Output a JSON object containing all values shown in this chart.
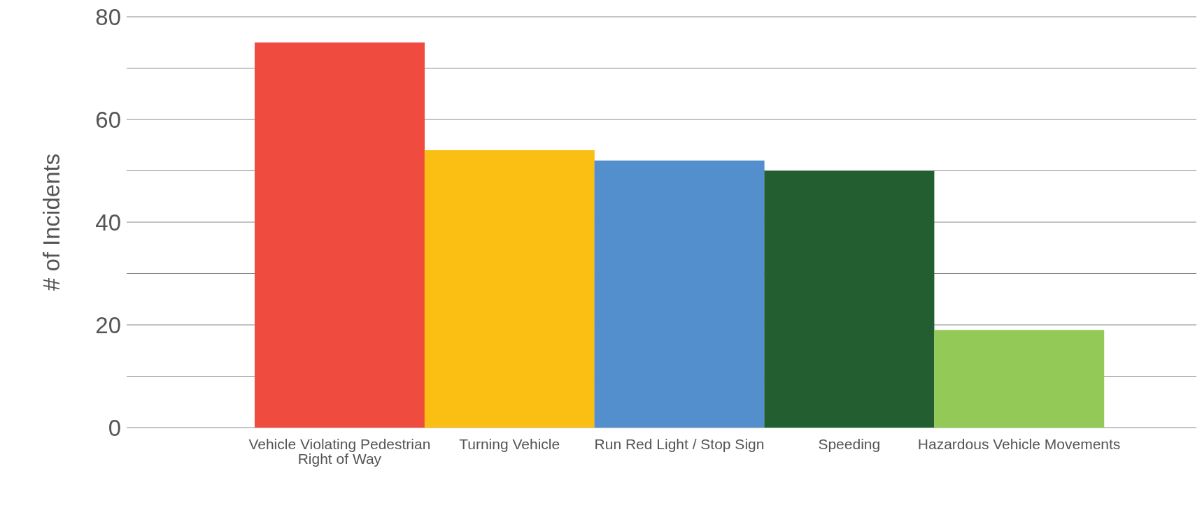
{
  "chart_data": {
    "type": "bar",
    "ylabel": "# of Incidents",
    "categories": [
      "Vehicle Violating Pedestrian Right of Way",
      "Turning Vehicle",
      "Run Red Light / Stop Sign",
      "Speeding",
      "Hazardous Vehicle Movements"
    ],
    "values": [
      75,
      54,
      52,
      50,
      19
    ],
    "colors": [
      "#f04b3f",
      "#fbbf14",
      "#528fcc",
      "#235e31",
      "#93c957"
    ],
    "ylim": [
      0,
      80
    ],
    "yticks": [
      0,
      {
        "value": 10,
        "label": null
      },
      20,
      {
        "value": 30,
        "label": null
      },
      40,
      {
        "value": 50,
        "label": null
      },
      60,
      {
        "value": 70,
        "label": null
      },
      80
    ],
    "grid": "y",
    "legend": false
  }
}
